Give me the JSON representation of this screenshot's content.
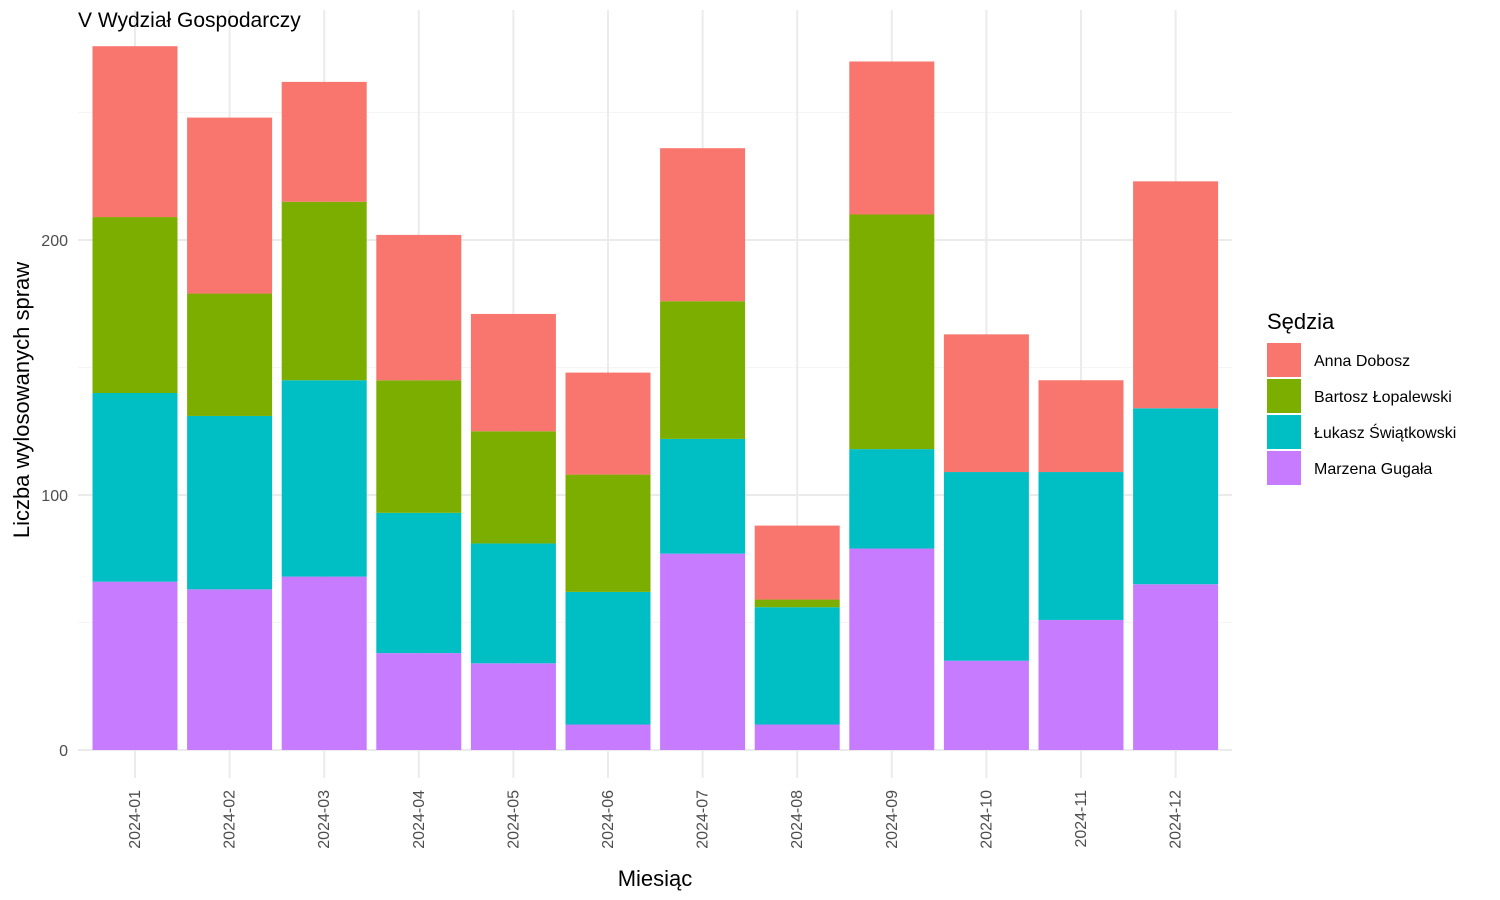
{
  "chart_data": {
    "type": "bar",
    "stacked": true,
    "title": "V Wydział Gospodarczy",
    "xlabel": "Miesiąc",
    "ylabel": "Liczba wylosowanych spraw",
    "ylim": [
      0,
      290
    ],
    "yticks": [
      0,
      100,
      200
    ],
    "grid": true,
    "legend_title": "Sędzia",
    "legend_position": "right",
    "categories": [
      "2024-01",
      "2024-02",
      "2024-03",
      "2024-04",
      "2024-05",
      "2024-06",
      "2024-07",
      "2024-08",
      "2024-09",
      "2024-10",
      "2024-11",
      "2024-12"
    ],
    "series": [
      {
        "name": "Marzena Gugała",
        "color": "#C77CFF",
        "values": [
          66,
          63,
          68,
          38,
          34,
          10,
          77,
          10,
          79,
          35,
          51,
          65
        ]
      },
      {
        "name": "Łukasz Świątkowski",
        "color": "#00BFC4",
        "values": [
          74,
          68,
          77,
          55,
          47,
          52,
          45,
          46,
          39,
          74,
          58,
          69
        ]
      },
      {
        "name": "Bartosz Łopalewski",
        "color": "#7CAE00",
        "values": [
          69,
          48,
          70,
          52,
          44,
          46,
          54,
          3,
          92,
          0,
          0,
          0
        ]
      },
      {
        "name": "Anna Dobosz",
        "color": "#F8766D",
        "values": [
          67,
          69,
          47,
          57,
          46,
          40,
          60,
          29,
          60,
          54,
          36,
          89
        ]
      }
    ],
    "legend_order": [
      "Anna Dobosz",
      "Bartosz Łopalewski",
      "Łukasz Świątkowski",
      "Marzena Gugała"
    ]
  }
}
